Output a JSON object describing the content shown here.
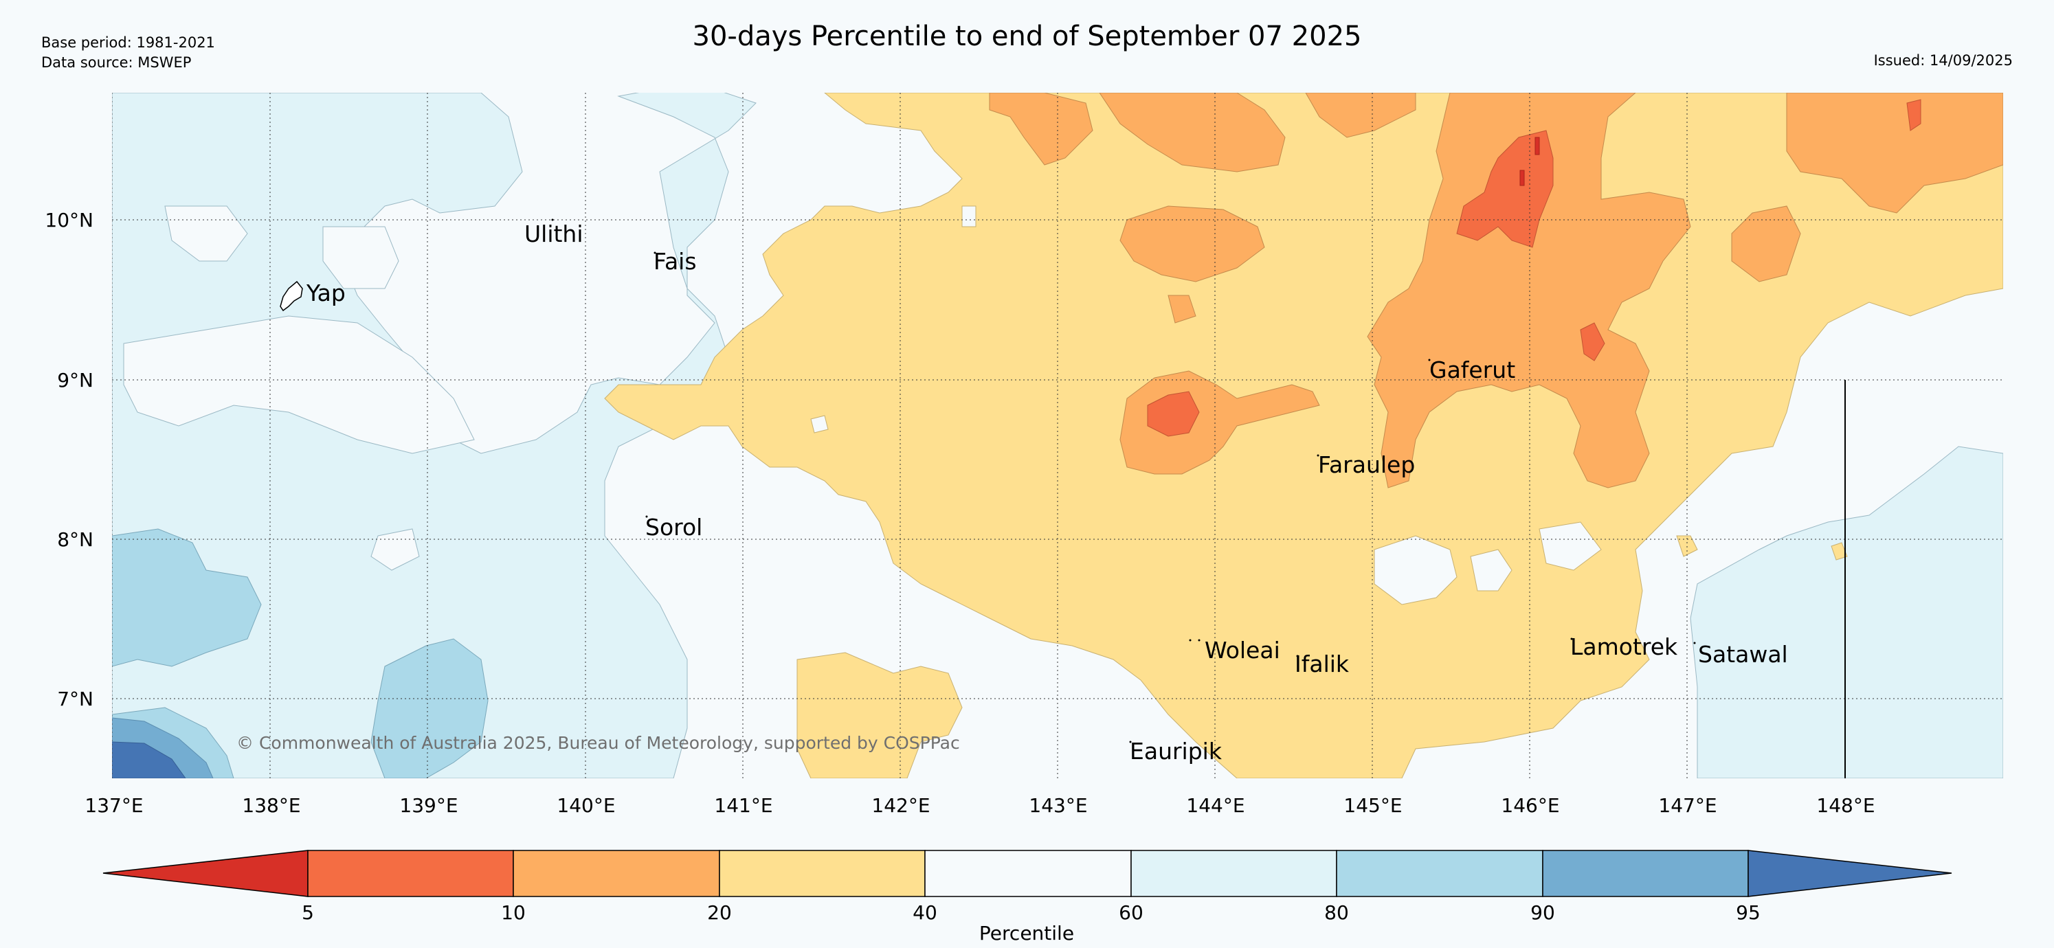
{
  "header": {
    "title": "30-days Percentile to end of September 07 2025",
    "base_period": "Base period: 1981-2021",
    "data_source": "Data source: MSWEP",
    "issued": "Issued: 14/09/2025"
  },
  "map": {
    "lat_labels": [
      "10°N",
      "9°N",
      "8°N",
      "7°N"
    ],
    "lon_labels": [
      "137°E",
      "138°E",
      "139°E",
      "140°E",
      "141°E",
      "142°E",
      "143°E",
      "144°E",
      "145°E",
      "146°E",
      "147°E",
      "148°E"
    ],
    "places": [
      {
        "name": "Ulithi"
      },
      {
        "name": "Fais"
      },
      {
        "name": "Yap"
      },
      {
        "name": "Gaferut"
      },
      {
        "name": "Faraulep"
      },
      {
        "name": "Sorol"
      },
      {
        "name": "Woleai"
      },
      {
        "name": "Ifalik"
      },
      {
        "name": "Lamotrek"
      },
      {
        "name": "Satawal"
      },
      {
        "name": "Eauripik"
      }
    ],
    "copyright": "© Commonwealth of Australia 2025, Bureau of Meteorology, supported by COSPPac"
  },
  "legend": {
    "label": "Percentile",
    "ticks": [
      "5",
      "10",
      "20",
      "40",
      "60",
      "80",
      "90",
      "95"
    ],
    "colors": {
      "below_5": "#d73027",
      "5_10": "#f46d43",
      "10_20": "#fdae61",
      "20_40": "#fee090",
      "40_60": "#f6fafc",
      "60_80": "#e0f3f8",
      "80_90": "#abd9e9",
      "90_95": "#74add1",
      "above_95": "#4575b4"
    }
  }
}
